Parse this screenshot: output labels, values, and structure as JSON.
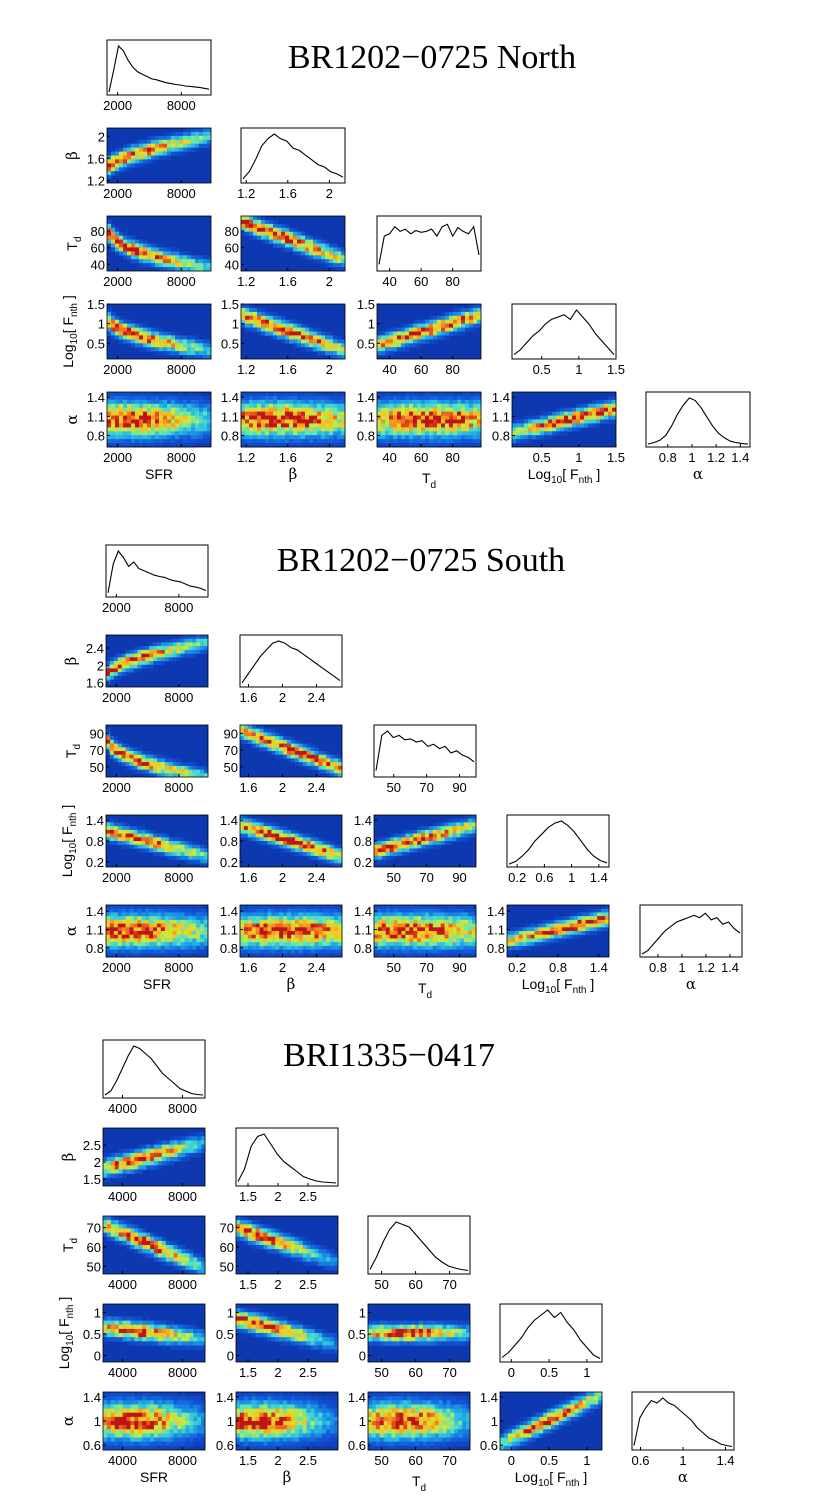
{
  "chart_data": [
    {
      "type": "corner",
      "title": "BR1202−0725 North",
      "params": [
        {
          "key": "SFR",
          "label": "SFR",
          "range": [
            1000,
            10800
          ],
          "ticks": [
            2000,
            8000
          ],
          "ticklabels": [
            "2000",
            "8000"
          ]
        },
        {
          "key": "beta",
          "label": "β",
          "range": [
            1.15,
            2.15
          ],
          "ticks": [
            1.2,
            1.6,
            2
          ],
          "ticklabels": [
            "1.2",
            "1.6",
            "2"
          ]
        },
        {
          "key": "Td",
          "label": "T",
          "sub": "d",
          "range": [
            32,
            98
          ],
          "ticks": [
            40,
            60,
            80
          ],
          "ticklabels": [
            "40",
            "60",
            "80"
          ]
        },
        {
          "key": "Fnth",
          "label": "Log",
          "sub": "10",
          "suffix": "[ F",
          "sub2": "nth",
          "suffix2": " ]",
          "range": [
            0.1,
            1.5
          ],
          "ticks": [
            0.5,
            1,
            1.5
          ],
          "ticklabels": [
            "0.5",
            "1",
            "1.5"
          ]
        },
        {
          "key": "alpha",
          "label": "α",
          "range": [
            0.62,
            1.48
          ],
          "ticks": [
            0.8,
            1.1,
            1.4
          ],
          "ticklabels": [
            "0.8",
            "1.1",
            "1.4"
          ],
          "diag_ticks": [
            0.8,
            1,
            1.2,
            1.4
          ],
          "diag_ticklabels": [
            "0.8",
            "1",
            "1.2",
            "1.4"
          ]
        }
      ],
      "histograms": [
        {
          "param": "SFR",
          "values": [
            0.02,
            0.5,
            1.0,
            0.9,
            0.7,
            0.55,
            0.45,
            0.4,
            0.35,
            0.3,
            0.28,
            0.25,
            0.22,
            0.2,
            0.18,
            0.17,
            0.15,
            0.14,
            0.13,
            0.12,
            0.1,
            0.08
          ]
        },
        {
          "param": "beta",
          "values": [
            0.05,
            0.2,
            0.45,
            0.75,
            0.9,
            1.0,
            0.9,
            0.85,
            0.7,
            0.65,
            0.55,
            0.45,
            0.35,
            0.3,
            0.2,
            0.15,
            0.08
          ]
        },
        {
          "param": "Td",
          "values": [
            0.1,
            0.7,
            0.75,
            0.9,
            0.8,
            0.85,
            0.75,
            0.82,
            0.78,
            0.8,
            0.85,
            0.7,
            0.9,
            0.95,
            0.7,
            0.88,
            0.8,
            0.75,
            0.9,
            0.3
          ]
        },
        {
          "param": "Fnth",
          "values": [
            0.05,
            0.15,
            0.3,
            0.45,
            0.55,
            0.7,
            0.8,
            0.85,
            0.9,
            0.8,
            1.0,
            0.85,
            0.7,
            0.5,
            0.35,
            0.2,
            0.05
          ]
        },
        {
          "param": "alpha",
          "values": [
            0.02,
            0.05,
            0.1,
            0.2,
            0.4,
            0.65,
            0.85,
            1.0,
            0.95,
            0.8,
            0.6,
            0.4,
            0.25,
            0.15,
            0.08,
            0.05,
            0.03,
            0.02
          ]
        }
      ]
    },
    {
      "type": "corner",
      "title": "BR1202−0725 South",
      "params": [
        {
          "key": "SFR",
          "label": "SFR",
          "range": [
            1000,
            10800
          ],
          "ticks": [
            2000,
            8000
          ],
          "ticklabels": [
            "2000",
            "8000"
          ]
        },
        {
          "key": "beta",
          "label": "β",
          "range": [
            1.5,
            2.7
          ],
          "ticks": [
            1.6,
            2,
            2.4
          ],
          "ticklabels": [
            "1.6",
            "2",
            "2.4"
          ]
        },
        {
          "key": "Td",
          "label": "T",
          "sub": "d",
          "range": [
            38,
            100
          ],
          "ticks": [
            50,
            70,
            90
          ],
          "ticklabels": [
            "50",
            "70",
            "90"
          ]
        },
        {
          "key": "Fnth",
          "label": "Log",
          "sub": "10",
          "suffix": "[ F",
          "sub2": "nth",
          "suffix2": " ]",
          "range": [
            0.05,
            1.55
          ],
          "ticks": [
            0.2,
            0.8,
            1.4
          ],
          "ticklabels": [
            "0.2",
            "0.8",
            "1.4"
          ],
          "diag_ticks": [
            0.2,
            0.6,
            1,
            1.4
          ],
          "diag_ticklabels": [
            "0.2",
            "0.6",
            "1",
            "1.4"
          ]
        },
        {
          "key": "alpha",
          "label": "α",
          "range": [
            0.65,
            1.5
          ],
          "ticks": [
            0.8,
            1.1,
            1.4
          ],
          "ticklabels": [
            "0.8",
            "1.1",
            "1.4"
          ],
          "diag_ticks": [
            0.8,
            1,
            1.2,
            1.4
          ],
          "diag_ticklabels": [
            "0.8",
            "1",
            "1.2",
            "1.4"
          ]
        }
      ],
      "histograms": [
        {
          "param": "SFR",
          "values": [
            0.05,
            0.7,
            1.0,
            0.85,
            0.65,
            0.75,
            0.6,
            0.55,
            0.5,
            0.45,
            0.42,
            0.4,
            0.35,
            0.32,
            0.3,
            0.25,
            0.2,
            0.18,
            0.15,
            0.1
          ]
        },
        {
          "param": "beta",
          "values": [
            0.05,
            0.25,
            0.45,
            0.65,
            0.8,
            0.95,
            1.0,
            0.95,
            0.85,
            0.8,
            0.7,
            0.6,
            0.5,
            0.4,
            0.3,
            0.2,
            0.1
          ]
        },
        {
          "param": "Td",
          "values": [
            0.1,
            0.9,
            1.0,
            0.85,
            0.9,
            0.8,
            0.82,
            0.75,
            0.78,
            0.65,
            0.7,
            0.6,
            0.65,
            0.5,
            0.55,
            0.45,
            0.4,
            0.3
          ]
        },
        {
          "param": "Fnth",
          "values": [
            0.02,
            0.08,
            0.2,
            0.35,
            0.55,
            0.7,
            0.85,
            0.95,
            1.0,
            0.9,
            0.75,
            0.55,
            0.35,
            0.2,
            0.1,
            0.05
          ]
        },
        {
          "param": "alpha",
          "values": [
            0.02,
            0.1,
            0.25,
            0.4,
            0.55,
            0.65,
            0.75,
            0.8,
            0.85,
            0.9,
            0.85,
            0.95,
            0.8,
            0.85,
            0.7,
            0.75,
            0.6,
            0.5
          ]
        }
      ]
    },
    {
      "type": "corner",
      "title": "BRI1335−0417",
      "params": [
        {
          "key": "SFR",
          "label": "SFR",
          "range": [
            2700,
            9500
          ],
          "ticks": [
            4000,
            8000
          ],
          "ticklabels": [
            "4000",
            "8000"
          ]
        },
        {
          "key": "beta",
          "label": "β",
          "range": [
            1.3,
            3.0
          ],
          "ticks": [
            1.5,
            2,
            2.5
          ],
          "ticklabels": [
            "1.5",
            "2",
            "2.5"
          ]
        },
        {
          "key": "Td",
          "label": "T",
          "sub": "d",
          "range": [
            46,
            76
          ],
          "ticks": [
            50,
            60,
            70
          ],
          "ticklabels": [
            "50",
            "60",
            "70"
          ]
        },
        {
          "key": "Fnth",
          "label": "Log",
          "sub": "10",
          "suffix": "[ F",
          "sub2": "nth",
          "suffix2": " ]",
          "range": [
            -0.15,
            1.2
          ],
          "ticks": [
            0,
            0.5,
            1
          ],
          "ticklabels": [
            "0",
            "0.5",
            "1"
          ]
        },
        {
          "key": "alpha",
          "label": "α",
          "range": [
            0.52,
            1.48
          ],
          "ticks": [
            0.6,
            1,
            1.4
          ],
          "ticklabels": [
            "0.6",
            "1",
            "1.4"
          ]
        }
      ],
      "histograms": [
        {
          "param": "SFR",
          "values": [
            0.02,
            0.1,
            0.3,
            0.55,
            0.8,
            1.0,
            0.95,
            0.85,
            0.75,
            0.6,
            0.45,
            0.35,
            0.25,
            0.15,
            0.1,
            0.05,
            0.03,
            0.02
          ]
        },
        {
          "param": "beta",
          "values": [
            0.05,
            0.3,
            0.75,
            0.95,
            1.0,
            0.8,
            0.6,
            0.45,
            0.35,
            0.25,
            0.15,
            0.1,
            0.06,
            0.04,
            0.03,
            0.02
          ]
        },
        {
          "param": "Td",
          "values": [
            0.05,
            0.3,
            0.6,
            0.85,
            1.0,
            0.95,
            0.9,
            0.75,
            0.6,
            0.45,
            0.3,
            0.2,
            0.12,
            0.08,
            0.05,
            0.03
          ]
        },
        {
          "param": "Fnth",
          "values": [
            0.05,
            0.15,
            0.3,
            0.45,
            0.65,
            0.8,
            0.9,
            1.0,
            0.85,
            0.95,
            0.75,
            0.6,
            0.4,
            0.25,
            0.1,
            0.03
          ]
        },
        {
          "param": "alpha",
          "values": [
            0.05,
            0.6,
            0.8,
            0.95,
            0.9,
            1.0,
            0.9,
            0.85,
            0.75,
            0.65,
            0.55,
            0.4,
            0.3,
            0.2,
            0.15,
            0.08,
            0.05,
            0.03
          ]
        }
      ]
    }
  ]
}
